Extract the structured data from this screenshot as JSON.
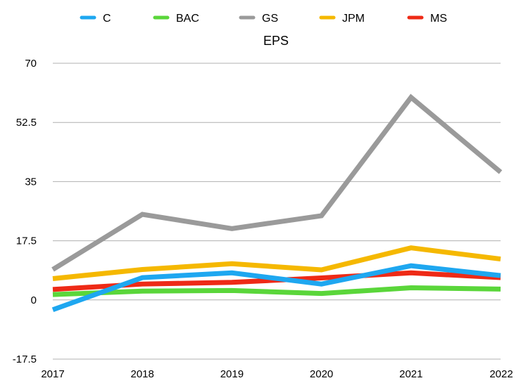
{
  "chart_data": {
    "type": "line",
    "title": "EPS",
    "xlabel": "",
    "ylabel": "",
    "x": [
      "2017",
      "2018",
      "2019",
      "2020",
      "2021",
      "2022"
    ],
    "ylim": [
      -17.5,
      70
    ],
    "yticks": [
      "70",
      "52.5",
      "35",
      "17.5",
      "0",
      "-17.5"
    ],
    "ytick_values": [
      70,
      52.5,
      35,
      17.5,
      0,
      -17.5
    ],
    "grid": true,
    "legend_position": "top",
    "series": [
      {
        "name": "C",
        "color": "#1ea7f0",
        "values": [
          -2.9,
          6.6,
          8.0,
          4.7,
          10.1,
          7.2
        ]
      },
      {
        "name": "BAC",
        "color": "#5ad63a",
        "values": [
          1.6,
          2.6,
          2.8,
          1.9,
          3.6,
          3.2
        ]
      },
      {
        "name": "GS",
        "color": "#9a9a9a",
        "values": [
          9.0,
          25.3,
          21.1,
          24.9,
          59.9,
          37.8
        ]
      },
      {
        "name": "JPM",
        "color": "#f5b800",
        "values": [
          6.3,
          9.0,
          10.7,
          8.9,
          15.4,
          12.1
        ]
      },
      {
        "name": "MS",
        "color": "#ee2a16",
        "values": [
          3.1,
          4.7,
          5.2,
          6.5,
          8.0,
          6.6
        ]
      }
    ]
  }
}
